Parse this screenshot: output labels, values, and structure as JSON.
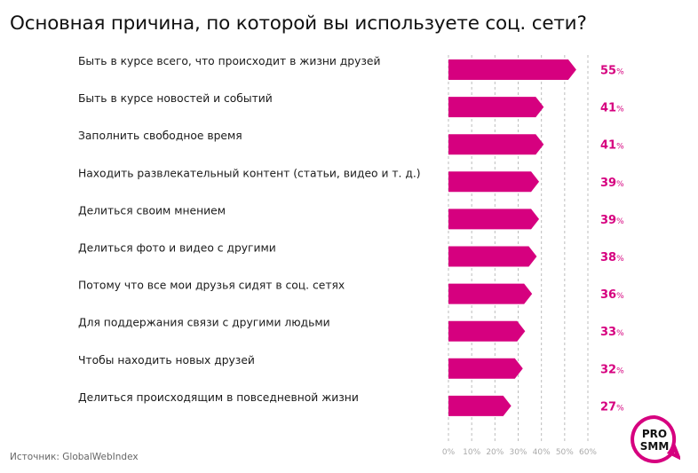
{
  "title": "Основная причина, по которой вы используете соц. сети?",
  "source": "Источник: GlobalWebIndex",
  "logo": {
    "line1": "PRO",
    "line2": "SMM"
  },
  "colors": {
    "bar": "#d6007f",
    "value": "#d6007f",
    "grid": "#bdbdbd",
    "axis_text": "#aaaaaa"
  },
  "chart_data": {
    "type": "bar",
    "orientation": "horizontal",
    "categories": [
      "Быть в курсе всего, что происходит в жизни друзей",
      "Быть в курсе новостей и событий",
      "Заполнить свободное время",
      "Находить развлекательный контент (статьи, видео и т. д.)",
      "Делиться своим мнением",
      "Делиться фото и видео с другими",
      "Потому что все мои друзья сидят в соц. сетях",
      "Для поддержания связи с другими людьми",
      "Чтобы находить новых друзей",
      "Делиться происходящим в повседневной жизни"
    ],
    "values": [
      55,
      41,
      41,
      39,
      39,
      38,
      36,
      33,
      32,
      27
    ],
    "value_unit": "%",
    "xlim": [
      0,
      60
    ],
    "xticks": [
      "0%",
      "10%",
      "20%",
      "30%",
      "40%",
      "50%",
      "60%"
    ],
    "grid": "vertical dashed"
  }
}
